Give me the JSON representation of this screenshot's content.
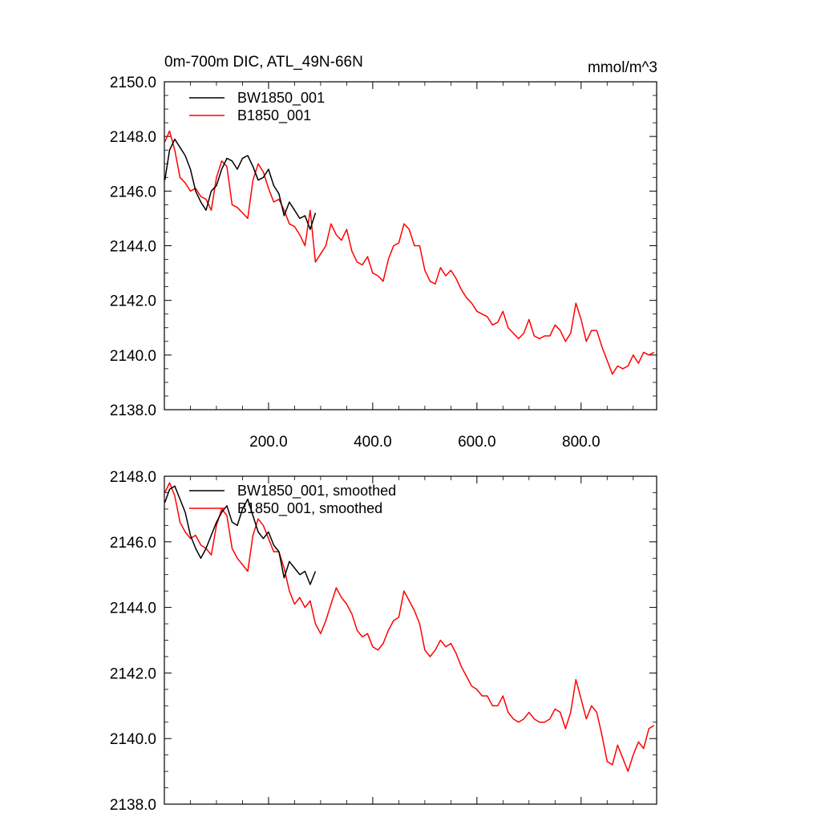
{
  "chart_data": [
    {
      "type": "line",
      "title": "0m-700m DIC, ATL_49N-66N",
      "units": "mmol/m^3",
      "xlim": [
        0,
        945
      ],
      "ylim": [
        2138.0,
        2150.0
      ],
      "x_ticks": [
        200,
        400,
        600,
        800
      ],
      "x_tick_labels": [
        "200.0",
        "400.0",
        "600.0",
        "800.0"
      ],
      "y_ticks": [
        2138,
        2140,
        2142,
        2144,
        2146,
        2148,
        2150
      ],
      "y_tick_labels": [
        "2138.0",
        "2140.0",
        "2142.0",
        "2144.0",
        "2146.0",
        "2148.0",
        "2150.0"
      ],
      "legend": [
        "BW1850_001",
        "B1850_001"
      ],
      "legend_position": "top-left",
      "series": [
        {
          "name": "BW1850_001",
          "color": "#000000",
          "x": [
            1,
            10,
            20,
            30,
            40,
            50,
            60,
            70,
            80,
            90,
            100,
            110,
            120,
            130,
            140,
            150,
            160,
            170,
            180,
            190,
            200,
            210,
            220,
            230,
            240,
            250,
            260,
            270,
            280,
            290
          ],
          "y": [
            2146.4,
            2147.5,
            2147.9,
            2147.6,
            2147.3,
            2146.8,
            2146.0,
            2145.6,
            2145.3,
            2146.0,
            2146.2,
            2146.8,
            2147.2,
            2147.1,
            2146.8,
            2147.2,
            2147.3,
            2146.9,
            2146.4,
            2146.5,
            2146.8,
            2146.2,
            2145.9,
            2145.1,
            2145.6,
            2145.3,
            2145.0,
            2145.1,
            2144.6,
            2145.2
          ]
        },
        {
          "name": "B1850_001",
          "color": "#ff0000",
          "x": [
            1,
            10,
            20,
            30,
            40,
            50,
            60,
            70,
            80,
            90,
            100,
            110,
            120,
            130,
            140,
            150,
            160,
            170,
            180,
            190,
            200,
            210,
            220,
            230,
            240,
            250,
            260,
            270,
            280,
            290,
            300,
            310,
            320,
            330,
            340,
            350,
            360,
            370,
            380,
            390,
            400,
            410,
            420,
            430,
            440,
            450,
            460,
            470,
            480,
            490,
            500,
            510,
            520,
            530,
            540,
            550,
            560,
            570,
            580,
            590,
            600,
            610,
            620,
            630,
            640,
            650,
            660,
            670,
            680,
            690,
            700,
            710,
            720,
            730,
            740,
            750,
            760,
            770,
            780,
            790,
            800,
            810,
            820,
            830,
            840,
            850,
            860,
            870,
            880,
            890,
            900,
            910,
            920,
            930,
            940
          ],
          "y": [
            2147.8,
            2148.2,
            2147.5,
            2146.5,
            2146.3,
            2146.0,
            2146.1,
            2145.8,
            2145.7,
            2145.3,
            2146.5,
            2147.1,
            2146.9,
            2145.5,
            2145.4,
            2145.2,
            2145.0,
            2146.4,
            2147.0,
            2146.7,
            2146.1,
            2145.6,
            2145.7,
            2145.3,
            2144.8,
            2144.7,
            2144.4,
            2144.0,
            2145.3,
            2143.4,
            2143.7,
            2144.0,
            2144.8,
            2144.4,
            2144.2,
            2144.6,
            2143.8,
            2143.4,
            2143.3,
            2143.6,
            2143.0,
            2142.9,
            2142.7,
            2143.5,
            2144.0,
            2144.1,
            2144.8,
            2144.6,
            2144.0,
            2144.0,
            2143.1,
            2142.7,
            2142.6,
            2143.2,
            2142.9,
            2143.1,
            2142.8,
            2142.4,
            2142.1,
            2141.9,
            2141.6,
            2141.5,
            2141.4,
            2141.1,
            2141.2,
            2141.6,
            2141.0,
            2140.8,
            2140.6,
            2140.8,
            2141.3,
            2140.7,
            2140.6,
            2140.7,
            2140.7,
            2141.1,
            2140.9,
            2140.5,
            2140.8,
            2141.9,
            2141.3,
            2140.5,
            2140.9,
            2140.9,
            2140.3,
            2139.8,
            2139.3,
            2139.6,
            2139.5,
            2139.6,
            2140.0,
            2139.7,
            2140.1,
            2140.0,
            2140.1
          ]
        }
      ]
    },
    {
      "type": "line",
      "title": "",
      "xlim": [
        0,
        945
      ],
      "ylim": [
        2138.0,
        2148.0
      ],
      "x_ticks": [
        200,
        400,
        600,
        800
      ],
      "x_tick_labels": [],
      "y_ticks": [
        2138,
        2140,
        2142,
        2144,
        2146,
        2148
      ],
      "y_tick_labels": [
        "2138.0",
        "2140.0",
        "2142.0",
        "2144.0",
        "2146.0",
        "2148.0"
      ],
      "legend": [
        "BW1850_001, smoothed",
        "B1850_001, smoothed"
      ],
      "legend_position": "top-left",
      "series": [
        {
          "name": "BW1850_001, smoothed",
          "color": "#000000",
          "x": [
            1,
            10,
            20,
            30,
            40,
            50,
            60,
            70,
            80,
            90,
            100,
            110,
            120,
            130,
            140,
            150,
            160,
            170,
            180,
            190,
            200,
            210,
            220,
            230,
            240,
            250,
            260,
            270,
            280,
            290
          ],
          "y": [
            2147.2,
            2147.6,
            2147.7,
            2147.3,
            2146.9,
            2146.2,
            2145.8,
            2145.5,
            2145.8,
            2146.2,
            2146.6,
            2146.9,
            2147.1,
            2146.6,
            2146.5,
            2147.0,
            2147.3,
            2146.8,
            2146.3,
            2146.1,
            2146.3,
            2145.9,
            2145.7,
            2144.9,
            2145.4,
            2145.2,
            2145.0,
            2145.1,
            2144.7,
            2145.1
          ]
        },
        {
          "name": "B1850_001, smoothed",
          "color": "#ff0000",
          "x": [
            1,
            10,
            20,
            30,
            40,
            50,
            60,
            70,
            80,
            90,
            100,
            110,
            120,
            130,
            140,
            150,
            160,
            170,
            180,
            190,
            200,
            210,
            220,
            230,
            240,
            250,
            260,
            270,
            280,
            290,
            300,
            310,
            320,
            330,
            340,
            350,
            360,
            370,
            380,
            390,
            400,
            410,
            420,
            430,
            440,
            450,
            460,
            470,
            480,
            490,
            500,
            510,
            520,
            530,
            540,
            550,
            560,
            570,
            580,
            590,
            600,
            610,
            620,
            630,
            640,
            650,
            660,
            670,
            680,
            690,
            700,
            710,
            720,
            730,
            740,
            750,
            760,
            770,
            780,
            790,
            800,
            810,
            820,
            830,
            840,
            850,
            860,
            870,
            880,
            890,
            900,
            910,
            920,
            930,
            940
          ],
          "y": [
            2147.5,
            2147.8,
            2147.4,
            2146.6,
            2146.3,
            2146.1,
            2146.2,
            2145.9,
            2145.8,
            2145.6,
            2146.5,
            2147.0,
            2146.8,
            2145.8,
            2145.5,
            2145.3,
            2145.1,
            2146.2,
            2146.7,
            2146.5,
            2146.1,
            2145.7,
            2145.7,
            2145.2,
            2144.5,
            2144.1,
            2144.3,
            2144.0,
            2144.2,
            2143.5,
            2143.2,
            2143.6,
            2144.1,
            2144.6,
            2144.3,
            2144.1,
            2143.8,
            2143.3,
            2143.1,
            2143.2,
            2142.8,
            2142.7,
            2142.9,
            2143.3,
            2143.6,
            2143.7,
            2144.5,
            2144.2,
            2143.9,
            2143.5,
            2142.7,
            2142.5,
            2142.7,
            2143.0,
            2142.8,
            2142.9,
            2142.6,
            2142.2,
            2141.9,
            2141.6,
            2141.5,
            2141.3,
            2141.3,
            2141.0,
            2141.0,
            2141.3,
            2140.8,
            2140.6,
            2140.5,
            2140.6,
            2140.8,
            2140.6,
            2140.5,
            2140.5,
            2140.6,
            2140.9,
            2140.8,
            2140.3,
            2140.8,
            2141.8,
            2141.2,
            2140.6,
            2141.0,
            2140.8,
            2140.1,
            2139.3,
            2139.2,
            2139.8,
            2139.4,
            2139.0,
            2139.5,
            2139.9,
            2139.7,
            2140.3,
            2140.4
          ]
        }
      ]
    }
  ]
}
